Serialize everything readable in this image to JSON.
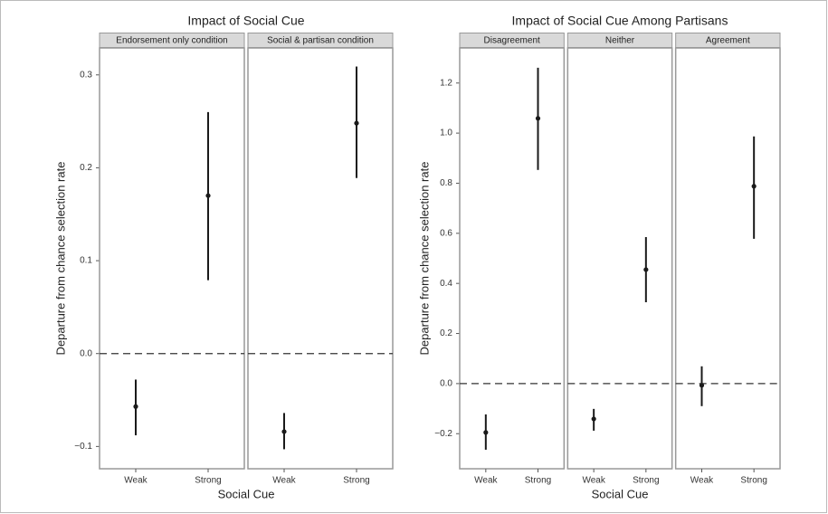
{
  "chart_data": [
    {
      "type": "pointrange",
      "title": "Impact of Social Cue",
      "xlabel": "Social Cue",
      "ylabel": "Departure from chance selection rate",
      "categories": [
        "Weak",
        "Strong"
      ],
      "color": "#1a1a1a",
      "hline": 0,
      "ylim": [
        -0.124,
        0.329
      ],
      "yticks": [
        {
          "value": -0.1,
          "label": "−0.1"
        },
        {
          "value": 0,
          "label": "0.0"
        },
        0.1,
        0.2,
        0.3
      ],
      "facets": [
        {
          "name": "Endorsement only condition",
          "values": [
            -0.057,
            0.17
          ],
          "lower": [
            -0.088,
            0.079
          ],
          "upper": [
            -0.028,
            0.26
          ]
        },
        {
          "name": "Social & partisan condition",
          "values": [
            -0.084,
            0.248
          ],
          "lower": [
            -0.103,
            0.189
          ],
          "upper": [
            -0.064,
            0.309
          ]
        }
      ]
    },
    {
      "type": "pointrange",
      "title": "Impact of Social Cue Among Partisans",
      "xlabel": "Social Cue",
      "ylabel": "Departure from chance selection rate",
      "categories": [
        "Weak",
        "Strong"
      ],
      "color": "#1a1a1a",
      "hline": 0,
      "ylim": [
        -0.34,
        1.34
      ],
      "yticks": [
        {
          "value": -0.2,
          "label": "−0.2"
        },
        {
          "value": 0,
          "label": "0.0"
        },
        0.2,
        0.4,
        0.6,
        0.8,
        {
          "value": 1,
          "label": "1.0"
        },
        1.2
      ],
      "facets": [
        {
          "name": "Disagreement",
          "values": [
            -0.195,
            1.059
          ],
          "lower": [
            -0.264,
            0.853
          ],
          "upper": [
            -0.123,
            1.261
          ]
        },
        {
          "name": "Neither",
          "values": [
            -0.141,
            0.455
          ],
          "lower": [
            -0.188,
            0.325
          ],
          "upper": [
            -0.101,
            0.585
          ]
        },
        {
          "name": "Agreement",
          "values": [
            -0.007,
            0.788
          ],
          "lower": [
            -0.09,
            0.578
          ],
          "upper": [
            0.069,
            0.987
          ]
        }
      ]
    }
  ]
}
